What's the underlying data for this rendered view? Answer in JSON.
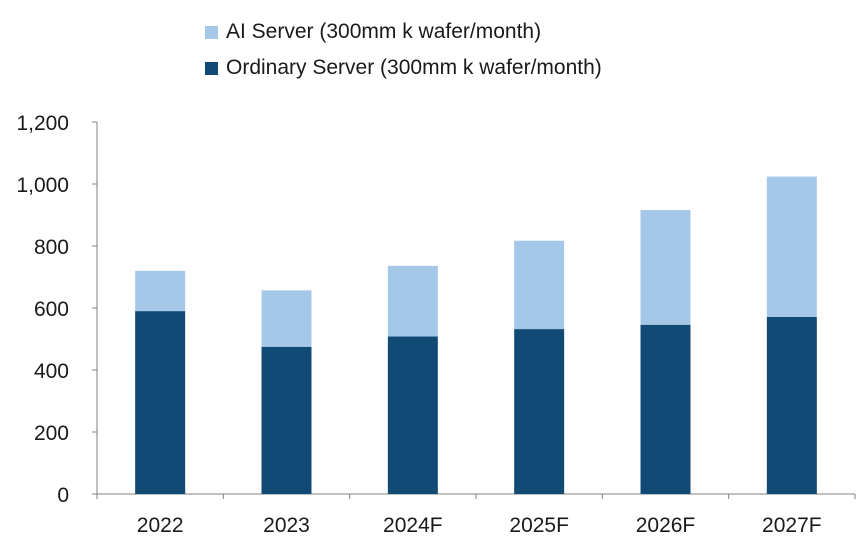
{
  "chart_data": {
    "type": "bar",
    "stacked": true,
    "categories": [
      "2022",
      "2023",
      "2024F",
      "2025F",
      "2026F",
      "2027F"
    ],
    "series": [
      {
        "name": "Ordinary Server (300mm k wafer/month)",
        "values": [
          590,
          475,
          508,
          532,
          546,
          571
        ],
        "color": "#124a76"
      },
      {
        "name": "AI Server (300mm k wafer/month)",
        "values": [
          130,
          182,
          228,
          285,
          370,
          453
        ],
        "color": "#a6c8e8"
      }
    ],
    "ylim": [
      0,
      1200
    ],
    "yticks": [
      0,
      200,
      400,
      600,
      800,
      1000,
      1200
    ],
    "ytick_labels": [
      "0",
      "200",
      "400",
      "600",
      "800",
      "1,000",
      "1,200"
    ],
    "title": "",
    "xlabel": "",
    "ylabel": "",
    "grid": false,
    "legend_position": "top"
  }
}
